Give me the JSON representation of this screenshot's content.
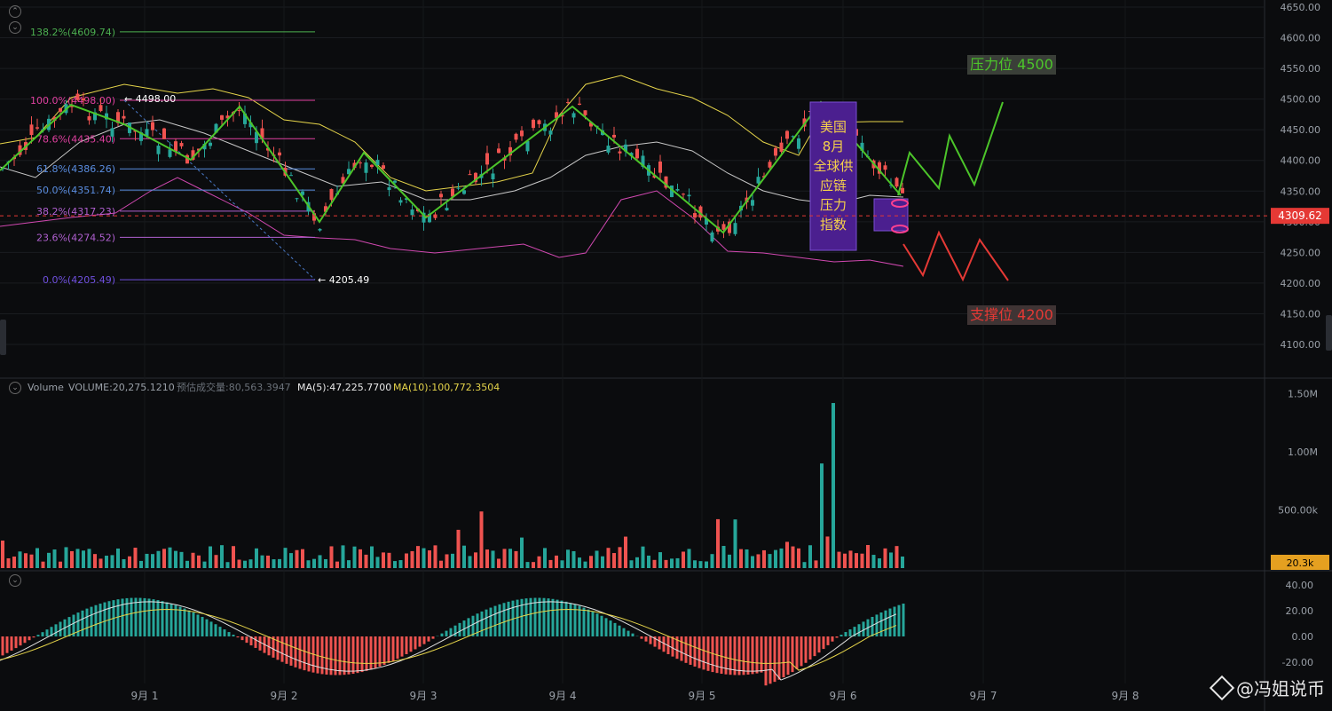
{
  "chart_data": [
    {
      "type": "candlestick",
      "panel": "price",
      "x_ticks": [
        "9月 1",
        "9月 2",
        "9月 3",
        "9月 4",
        "9月 5",
        "9月 6",
        "9月 7",
        "9月 8"
      ],
      "y_ticks": [
        4100,
        4150,
        4200,
        4250,
        4300,
        4350,
        4400,
        4450,
        4500,
        4550,
        4600,
        4650
      ],
      "ylim": [
        4070,
        4660
      ],
      "current_price_label": "4309.62",
      "current_price": 4309.62,
      "high_label": "4498.00",
      "low_label": "4205.49",
      "fib_levels": [
        {
          "label": "138.2%(4609.74)",
          "value": 4609.74,
          "color": "#4caf50"
        },
        {
          "label": "100.0%(4498.00)",
          "value": 4498.0,
          "color": "#e040a0"
        },
        {
          "label": "78.6%(4435.40)",
          "value": 4435.4,
          "color": "#e040a0"
        },
        {
          "label": "61.8%(4386.26)",
          "value": 4386.26,
          "color": "#5a8de0"
        },
        {
          "label": "50.0%(4351.74)",
          "value": 4351.74,
          "color": "#5a8de0"
        },
        {
          "label": "38.2%(4317.23)",
          "value": 4317.23,
          "color": "#b060d0"
        },
        {
          "label": "23.6%(4274.52)",
          "value": 4274.52,
          "color": "#b060d0"
        },
        {
          "label": "0.0%(4205.49)",
          "value": 4205.49,
          "color": "#7050e0"
        }
      ],
      "annotation_box": "美国\n8月\n全球供\n应链\n压力\n指数",
      "resistance_label": "压力位 4500",
      "support_label": "支撑位 4200",
      "colors": {
        "up": "#26a69a",
        "down": "#ef5350",
        "zigzag_green": "#4cc52a",
        "zigzag_red": "#e53935",
        "bb_upper": "#e5d44a",
        "bb_mid": "#c8c8c8",
        "bb_lower": "#d048b0",
        "price_tag": "#e53935"
      }
    },
    {
      "type": "bar",
      "panel": "volume",
      "header": {
        "title": "Volume",
        "volume": "VOLUME:20,275.1210",
        "est": "预估成交量:80,563.3947",
        "ma5": "MA(5):47,225.7700",
        "ma10": "MA(10):100,772.3504"
      },
      "y_ticks": [
        "1.50M",
        "1.00M",
        "500.00k"
      ],
      "current_label": "20.3k"
    },
    {
      "type": "histogram",
      "panel": "macd",
      "y_ticks": [
        "40.00",
        "20.00",
        "0.00",
        "-20.00"
      ]
    }
  ],
  "watermark": "@冯姐说币",
  "icons": [
    "collapse-icon",
    "binance-logo-icon"
  ]
}
